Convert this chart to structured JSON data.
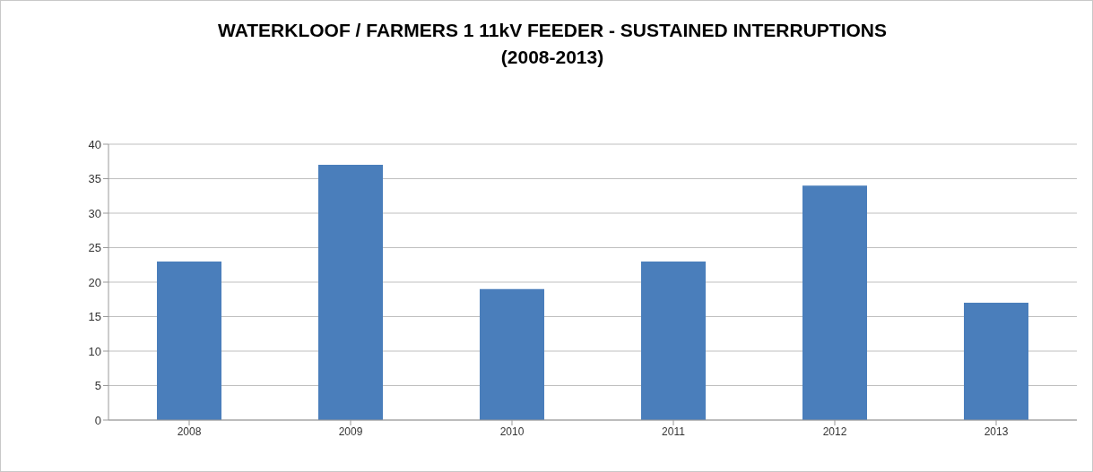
{
  "chart_data": {
    "type": "bar",
    "title": "WATERKLOOF / FARMERS 1 11kV FEEDER - SUSTAINED INTERRUPTIONS\n(2008-2013)",
    "categories": [
      "2008",
      "2009",
      "2010",
      "2011",
      "2012",
      "2013"
    ],
    "values": [
      23,
      37,
      19,
      23,
      34,
      17
    ],
    "color": "#4a7ebb",
    "ylim": [
      0,
      40
    ],
    "yticks": [
      0,
      5,
      10,
      15,
      20,
      25,
      30,
      35,
      40
    ],
    "grid": "y"
  }
}
